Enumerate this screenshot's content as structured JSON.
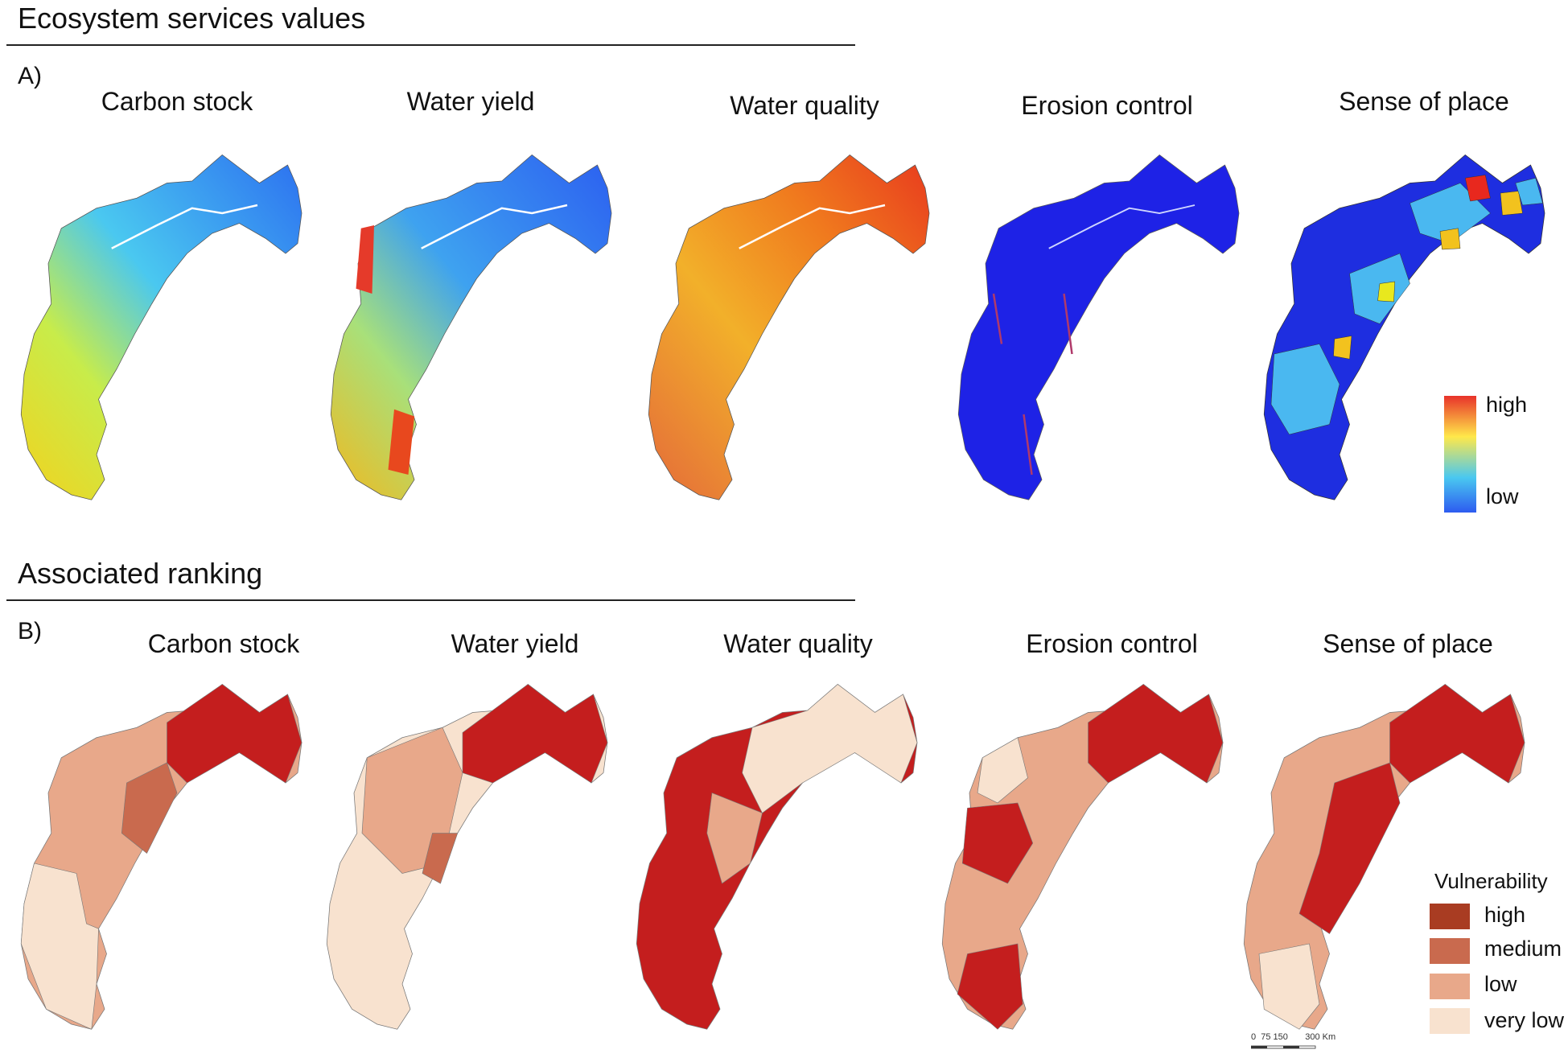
{
  "section_a": {
    "title": "Ecosystem services values",
    "tag": "A)",
    "maps": [
      {
        "title": "Carbon stock"
      },
      {
        "title": "Water yield"
      },
      {
        "title": "Water quality"
      },
      {
        "title": "Erosion control"
      },
      {
        "title": "Sense of place"
      }
    ],
    "legend": {
      "high": "high",
      "low": "low"
    }
  },
  "section_b": {
    "title": "Associated ranking",
    "tag": "B)",
    "maps": [
      {
        "title": "Carbon stock"
      },
      {
        "title": "Water yield"
      },
      {
        "title": "Water quality"
      },
      {
        "title": "Erosion control"
      },
      {
        "title": "Sense of place"
      }
    ],
    "legend": {
      "title": "Vulnerability",
      "classes": [
        {
          "label": "high",
          "color": "#a93c22"
        },
        {
          "label": "medium",
          "color": "#c96a4e"
        },
        {
          "label": "low",
          "color": "#e8a88a"
        },
        {
          "label": "very low",
          "color": "#f8e2cf"
        }
      ]
    },
    "scale_bar": "0  75 150       300 Km"
  },
  "colors": {
    "value_high": "#e8322a",
    "value_mid": "#ffe84a",
    "value_low": "#2d5bf0",
    "rank_high": "#c41e1e",
    "rank_very_low": "#f8e2cf"
  }
}
